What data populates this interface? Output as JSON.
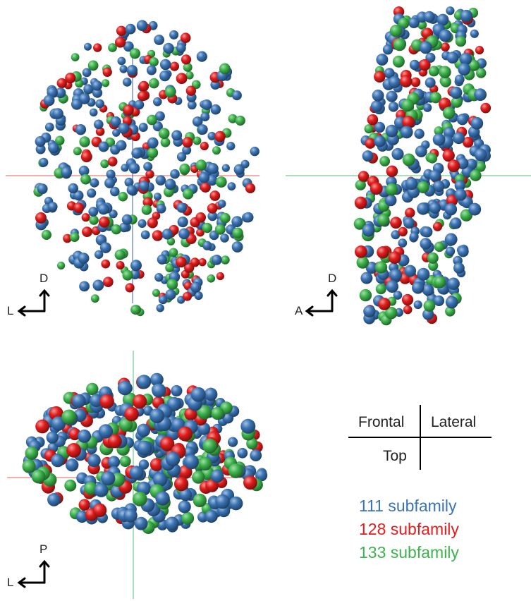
{
  "colors": {
    "subfamily_111": "#3a74b6",
    "subfamily_128": "#e21c1c",
    "subfamily_133": "#3cb44b",
    "frontal_horizontal_axis": "#e0605a",
    "frontal_vertical_axis": "#3a5fb8",
    "lateral_axis": "#58c27a",
    "top_horizontal_axis": "#e0605a",
    "top_vertical_axis": "#58c27a",
    "arrow": "#000000"
  },
  "panels": {
    "frontal": {
      "axis_up": "D",
      "axis_left": "L"
    },
    "lateral": {
      "axis_up": "D",
      "axis_left": "A"
    },
    "top": {
      "axis_up": "P",
      "axis_left": "L"
    }
  },
  "key": {
    "frontal": "Frontal",
    "lateral": "Lateral",
    "top": "Top"
  },
  "legend": [
    {
      "label": "111 subfamily",
      "color_key": "subfamily_111"
    },
    {
      "label": "128 subfamily",
      "color_key": "subfamily_128"
    },
    {
      "label": "133 subfamily",
      "color_key": "subfamily_133"
    }
  ]
}
